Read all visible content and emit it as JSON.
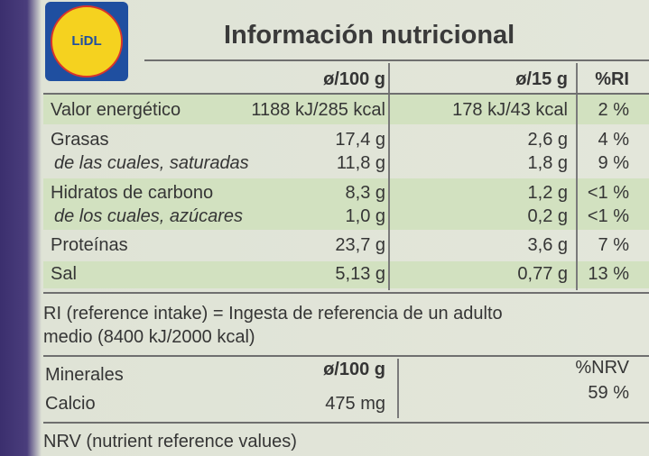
{
  "logo": "LiDL",
  "title": "Información nutricional",
  "nutrition": {
    "header": {
      "per100": "ø/100 g",
      "perPortion": "ø/15 g",
      "ri": "%RI"
    },
    "rows": [
      [
        "Valor energético",
        "1188 kJ/285 kcal",
        "178 kJ/43 kcal",
        "2 %"
      ],
      [
        "Grasas",
        "17,4 g",
        "2,6 g",
        "4 %"
      ],
      [
        "de las cuales, saturadas",
        "11,8 g",
        "1,8 g",
        "9 %"
      ],
      [
        "Hidratos de carbono",
        "8,3 g",
        "1,2 g",
        "<1 %"
      ],
      [
        "de los cuales, azúcares",
        "1,0 g",
        "0,2 g",
        "<1 %"
      ],
      [
        "Proteínas",
        "23,7 g",
        "3,6 g",
        "7 %"
      ],
      [
        "Sal",
        "5,13 g",
        "0,77 g",
        "13 %"
      ]
    ]
  },
  "ri_note": [
    "RI (reference intake) = Ingesta de referencia de un adulto",
    "medio (8400 kJ/2000 kcal)"
  ],
  "minerals": {
    "header": {
      "name": "Minerales",
      "per100": "ø/100 g",
      "nrv": "%NRV"
    },
    "rows": [
      [
        "Calcio",
        "475 mg",
        "59 %"
      ]
    ]
  },
  "nrv_note": "NRV (nutrient reference values)"
}
